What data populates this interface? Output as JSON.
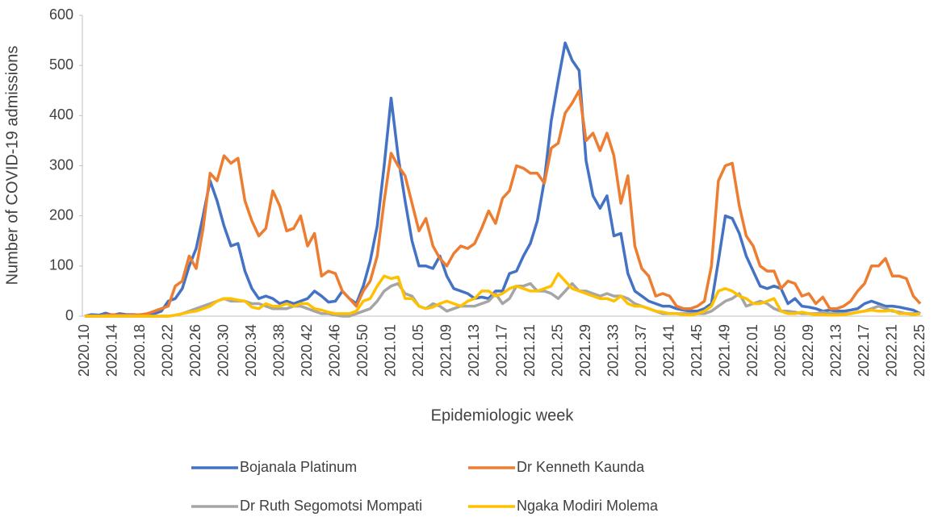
{
  "chart_data": {
    "type": "line",
    "x_label": "Epidemiologic week",
    "y_label": "Number of COVID-19 admissions",
    "categories": [
      "2020.10",
      null,
      null,
      null,
      "2020.14",
      null,
      null,
      null,
      "2020.18",
      null,
      null,
      null,
      "2020.22",
      null,
      null,
      null,
      "2020.26",
      null,
      null,
      null,
      "2020.30",
      null,
      null,
      null,
      "2020.34",
      null,
      null,
      null,
      "2020.38",
      null,
      null,
      null,
      "2020.42",
      null,
      null,
      null,
      "2020.46",
      null,
      null,
      null,
      "2020.50",
      null,
      null,
      null,
      "2021.01",
      null,
      null,
      null,
      "2021.05",
      null,
      null,
      null,
      "2021.09",
      null,
      null,
      null,
      "2021.13",
      null,
      null,
      null,
      "2021.17",
      null,
      null,
      null,
      "2021.21",
      null,
      null,
      null,
      "2021.25",
      null,
      null,
      null,
      "2021.29",
      null,
      null,
      null,
      "2021.33",
      null,
      null,
      null,
      "2021.37",
      null,
      null,
      null,
      "2021.41",
      null,
      null,
      null,
      "2021.45",
      null,
      null,
      null,
      "2021.49",
      null,
      null,
      null,
      "2022.01",
      null,
      null,
      null,
      "2022.05",
      null,
      null,
      null,
      "2022.09",
      null,
      null,
      null,
      "2022.13",
      null,
      null,
      null,
      "2022.17",
      null,
      null,
      null,
      "2022.21",
      null,
      null,
      null,
      "2022.25"
    ],
    "series": [
      {
        "name": "Bojanala Platinum",
        "color": "#4472c4",
        "values": [
          0,
          3,
          2,
          6,
          2,
          5,
          3,
          3,
          2,
          4,
          5,
          10,
          30,
          35,
          55,
          100,
          135,
          200,
          270,
          230,
          180,
          140,
          145,
          90,
          55,
          35,
          40,
          35,
          25,
          30,
          25,
          30,
          35,
          50,
          40,
          28,
          30,
          50,
          35,
          25,
          60,
          110,
          180,
          300,
          435,
          320,
          230,
          150,
          100,
          100,
          95,
          120,
          80,
          55,
          50,
          45,
          35,
          38,
          35,
          50,
          50,
          85,
          90,
          120,
          145,
          190,
          270,
          390,
          470,
          545,
          510,
          490,
          310,
          240,
          215,
          240,
          160,
          165,
          85,
          50,
          40,
          30,
          25,
          20,
          20,
          15,
          12,
          10,
          10,
          15,
          25,
          110,
          200,
          195,
          165,
          120,
          90,
          60,
          55,
          60,
          55,
          25,
          35,
          20,
          18,
          15,
          10,
          12,
          10,
          10,
          12,
          15,
          25,
          30,
          25,
          20,
          20,
          18,
          15,
          12,
          5
        ]
      },
      {
        "name": "Dr Kenneth Kaunda",
        "color": "#ed7d31",
        "values": [
          0,
          0,
          0,
          2,
          3,
          2,
          2,
          2,
          3,
          5,
          10,
          15,
          20,
          60,
          70,
          120,
          95,
          175,
          285,
          270,
          320,
          305,
          315,
          230,
          190,
          160,
          175,
          250,
          220,
          170,
          175,
          200,
          140,
          165,
          80,
          90,
          85,
          50,
          35,
          20,
          50,
          70,
          120,
          230,
          325,
          300,
          280,
          225,
          170,
          195,
          140,
          115,
          100,
          125,
          140,
          135,
          145,
          175,
          210,
          185,
          235,
          250,
          300,
          295,
          285,
          285,
          265,
          335,
          345,
          405,
          425,
          450,
          350,
          365,
          330,
          365,
          320,
          225,
          280,
          140,
          95,
          80,
          40,
          45,
          40,
          20,
          15,
          15,
          20,
          30,
          100,
          270,
          300,
          305,
          220,
          160,
          140,
          100,
          90,
          90,
          55,
          70,
          65,
          40,
          45,
          25,
          38,
          15,
          15,
          20,
          30,
          50,
          65,
          100,
          100,
          115,
          80,
          80,
          75,
          40,
          25
        ]
      },
      {
        "name": "Dr Ruth Segomotsi Mompati",
        "color": "#a5a5a5",
        "values": [
          0,
          0,
          0,
          0,
          0,
          0,
          0,
          0,
          0,
          0,
          0,
          0,
          0,
          2,
          5,
          10,
          15,
          20,
          25,
          30,
          35,
          30,
          30,
          30,
          25,
          25,
          20,
          15,
          15,
          15,
          20,
          20,
          15,
          10,
          5,
          5,
          2,
          0,
          0,
          5,
          10,
          15,
          30,
          50,
          60,
          65,
          45,
          40,
          20,
          15,
          25,
          20,
          10,
          15,
          20,
          20,
          20,
          25,
          30,
          45,
          25,
          35,
          60,
          60,
          65,
          50,
          50,
          45,
          35,
          50,
          65,
          50,
          50,
          45,
          40,
          45,
          40,
          40,
          35,
          25,
          20,
          15,
          10,
          5,
          5,
          5,
          5,
          5,
          5,
          5,
          10,
          20,
          30,
          35,
          45,
          20,
          25,
          30,
          25,
          15,
          10,
          10,
          8,
          5,
          5,
          5,
          8,
          5,
          5,
          5,
          5,
          8,
          10,
          15,
          20,
          15,
          10,
          8,
          5,
          5,
          5
        ]
      },
      {
        "name": "Ngaka Modiri Molema",
        "color": "#ffc000",
        "values": [
          0,
          0,
          0,
          0,
          0,
          0,
          0,
          0,
          0,
          0,
          0,
          0,
          0,
          2,
          5,
          8,
          10,
          15,
          20,
          30,
          35,
          35,
          32,
          30,
          18,
          15,
          25,
          20,
          20,
          25,
          20,
          25,
          25,
          15,
          12,
          8,
          5,
          5,
          5,
          10,
          30,
          35,
          60,
          80,
          75,
          78,
          35,
          35,
          20,
          15,
          18,
          25,
          30,
          25,
          20,
          30,
          35,
          50,
          50,
          40,
          45,
          55,
          60,
          55,
          50,
          50,
          55,
          60,
          85,
          70,
          55,
          50,
          45,
          40,
          35,
          35,
          30,
          40,
          25,
          20,
          20,
          15,
          10,
          8,
          5,
          5,
          3,
          2,
          5,
          10,
          20,
          50,
          55,
          50,
          40,
          35,
          25,
          25,
          30,
          35,
          10,
          5,
          5,
          8,
          5,
          3,
          3,
          2,
          2,
          3,
          5,
          8,
          10,
          12,
          10,
          10,
          12,
          5,
          5,
          3,
          5
        ]
      }
    ],
    "ylim": [
      0,
      600
    ],
    "yticks": [
      0,
      100,
      200,
      300,
      400,
      500,
      600
    ],
    "grid": false,
    "legend": "bottom"
  }
}
